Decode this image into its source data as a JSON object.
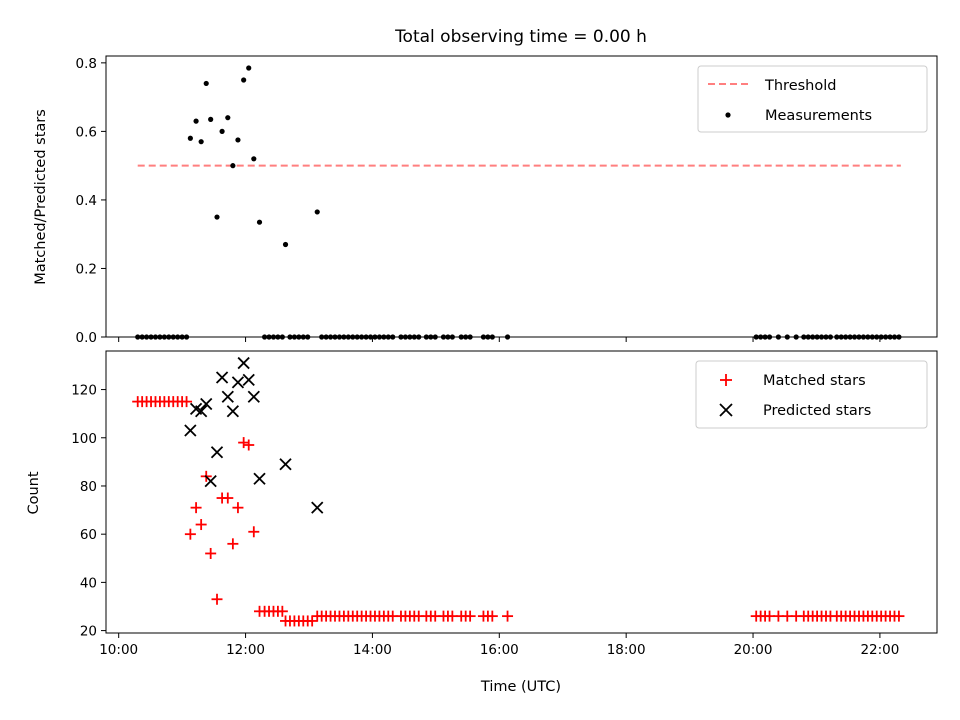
{
  "figure": {
    "title": "Total observing time = 0.00 h"
  },
  "chart_data": [
    {
      "type": "scatter",
      "title": "Total observing time = 0.00 h",
      "xlabel": "",
      "ylabel": "Matched/Predicted stars",
      "xlim": [
        9.8,
        22.9
      ],
      "ylim": [
        0,
        0.82
      ],
      "xticks": [
        10,
        12,
        14,
        16,
        18,
        20,
        22
      ],
      "xtick_labels": [
        "",
        "",
        "",
        "",
        "",
        "",
        ""
      ],
      "yticks": [
        0,
        0.2,
        0.4,
        0.6,
        0.8
      ],
      "ytick_labels": [
        "0.0",
        "0.2",
        "0.4",
        "0.6",
        "0.8"
      ],
      "legend": {
        "position": "top-right",
        "entries": [
          "Threshold",
          "Measurements"
        ]
      },
      "grid": false,
      "threshold": {
        "name": "Threshold",
        "value": 0.5,
        "x_range": [
          10.3,
          22.33
        ],
        "color": "#ff7f7f"
      },
      "series": [
        {
          "name": "Measurements",
          "color": "#000000",
          "marker": "dot",
          "points": [
            [
              11.13,
              0.58
            ],
            [
              11.22,
              0.63
            ],
            [
              11.3,
              0.57
            ],
            [
              11.38,
              0.74
            ],
            [
              11.45,
              0.635
            ],
            [
              11.55,
              0.35
            ],
            [
              11.63,
              0.6
            ],
            [
              11.72,
              0.64
            ],
            [
              11.8,
              0.5
            ],
            [
              11.88,
              0.575
            ],
            [
              11.97,
              0.75
            ],
            [
              12.05,
              0.785
            ],
            [
              12.13,
              0.52
            ],
            [
              12.22,
              0.335
            ],
            [
              12.63,
              0.27
            ],
            [
              13.13,
              0.365
            ],
            [
              10.3,
              0
            ],
            [
              10.37,
              0
            ],
            [
              10.44,
              0
            ],
            [
              10.51,
              0
            ],
            [
              10.58,
              0
            ],
            [
              10.65,
              0
            ],
            [
              10.72,
              0
            ],
            [
              10.79,
              0
            ],
            [
              10.86,
              0
            ],
            [
              10.93,
              0
            ],
            [
              11.0,
              0
            ],
            [
              11.07,
              0
            ],
            [
              12.3,
              0
            ],
            [
              12.37,
              0
            ],
            [
              12.44,
              0
            ],
            [
              12.51,
              0
            ],
            [
              12.58,
              0
            ],
            [
              12.7,
              0
            ],
            [
              12.77,
              0
            ],
            [
              12.84,
              0
            ],
            [
              12.91,
              0
            ],
            [
              12.98,
              0
            ],
            [
              13.2,
              0
            ],
            [
              13.27,
              0
            ],
            [
              13.34,
              0
            ],
            [
              13.41,
              0
            ],
            [
              13.48,
              0
            ],
            [
              13.55,
              0
            ],
            [
              13.62,
              0
            ],
            [
              13.69,
              0
            ],
            [
              13.76,
              0
            ],
            [
              13.83,
              0
            ],
            [
              13.9,
              0
            ],
            [
              13.97,
              0
            ],
            [
              14.04,
              0
            ],
            [
              14.11,
              0
            ],
            [
              14.18,
              0
            ],
            [
              14.25,
              0
            ],
            [
              14.32,
              0
            ],
            [
              14.45,
              0
            ],
            [
              14.52,
              0
            ],
            [
              14.59,
              0
            ],
            [
              14.66,
              0
            ],
            [
              14.73,
              0
            ],
            [
              14.85,
              0
            ],
            [
              14.92,
              0
            ],
            [
              14.99,
              0
            ],
            [
              15.12,
              0
            ],
            [
              15.19,
              0
            ],
            [
              15.26,
              0
            ],
            [
              15.4,
              0
            ],
            [
              15.47,
              0
            ],
            [
              15.54,
              0
            ],
            [
              15.75,
              0
            ],
            [
              15.82,
              0
            ],
            [
              15.89,
              0
            ],
            [
              16.13,
              0
            ],
            [
              20.05,
              0
            ],
            [
              20.12,
              0
            ],
            [
              20.19,
              0
            ],
            [
              20.26,
              0
            ],
            [
              20.4,
              0
            ],
            [
              20.54,
              0
            ],
            [
              20.68,
              0
            ],
            [
              20.8,
              0
            ],
            [
              20.87,
              0
            ],
            [
              20.94,
              0
            ],
            [
              21.01,
              0
            ],
            [
              21.08,
              0
            ],
            [
              21.15,
              0
            ],
            [
              21.22,
              0
            ],
            [
              21.32,
              0
            ],
            [
              21.39,
              0
            ],
            [
              21.46,
              0
            ],
            [
              21.53,
              0
            ],
            [
              21.6,
              0
            ],
            [
              21.67,
              0
            ],
            [
              21.74,
              0
            ],
            [
              21.81,
              0
            ],
            [
              21.88,
              0
            ],
            [
              21.95,
              0
            ],
            [
              22.02,
              0
            ],
            [
              22.09,
              0
            ],
            [
              22.16,
              0
            ],
            [
              22.23,
              0
            ],
            [
              22.3,
              0
            ]
          ]
        }
      ]
    },
    {
      "type": "scatter",
      "title": "",
      "xlabel": "Time (UTC)",
      "ylabel": "Count",
      "xlim": [
        9.8,
        22.9
      ],
      "ylim": [
        19,
        136
      ],
      "xticks": [
        10,
        12,
        14,
        16,
        18,
        20,
        22
      ],
      "xtick_labels": [
        "10:00",
        "12:00",
        "14:00",
        "16:00",
        "18:00",
        "20:00",
        "22:00"
      ],
      "yticks": [
        20,
        40,
        60,
        80,
        100,
        120
      ],
      "ytick_labels": [
        "20",
        "40",
        "60",
        "80",
        "100",
        "120"
      ],
      "legend": {
        "position": "top-right",
        "entries": [
          "Matched stars",
          "Predicted stars"
        ]
      },
      "grid": false,
      "series": [
        {
          "name": "Matched stars",
          "color": "#ff0000",
          "marker": "plus",
          "points": [
            [
              10.3,
              115
            ],
            [
              10.37,
              115
            ],
            [
              10.44,
              115
            ],
            [
              10.51,
              115
            ],
            [
              10.58,
              115
            ],
            [
              10.65,
              115
            ],
            [
              10.72,
              115
            ],
            [
              10.79,
              115
            ],
            [
              10.86,
              115
            ],
            [
              10.93,
              115
            ],
            [
              11.0,
              115
            ],
            [
              11.07,
              115
            ],
            [
              11.13,
              60
            ],
            [
              11.22,
              71
            ],
            [
              11.3,
              64
            ],
            [
              11.38,
              84
            ],
            [
              11.45,
              52
            ],
            [
              11.55,
              33
            ],
            [
              11.63,
              75
            ],
            [
              11.72,
              75
            ],
            [
              11.8,
              56
            ],
            [
              11.88,
              71
            ],
            [
              11.97,
              98
            ],
            [
              12.05,
              97
            ],
            [
              12.13,
              61
            ],
            [
              12.22,
              28
            ],
            [
              12.3,
              28
            ],
            [
              12.37,
              28
            ],
            [
              12.44,
              28
            ],
            [
              12.51,
              28
            ],
            [
              12.58,
              28
            ],
            [
              12.63,
              24
            ],
            [
              12.7,
              24
            ],
            [
              12.77,
              24
            ],
            [
              12.84,
              24
            ],
            [
              12.91,
              24
            ],
            [
              12.98,
              24
            ],
            [
              13.05,
              24
            ],
            [
              13.13,
              26
            ],
            [
              13.2,
              26
            ],
            [
              13.27,
              26
            ],
            [
              13.34,
              26
            ],
            [
              13.41,
              26
            ],
            [
              13.48,
              26
            ],
            [
              13.55,
              26
            ],
            [
              13.62,
              26
            ],
            [
              13.69,
              26
            ],
            [
              13.76,
              26
            ],
            [
              13.83,
              26
            ],
            [
              13.9,
              26
            ],
            [
              13.97,
              26
            ],
            [
              14.04,
              26
            ],
            [
              14.11,
              26
            ],
            [
              14.18,
              26
            ],
            [
              14.25,
              26
            ],
            [
              14.32,
              26
            ],
            [
              14.45,
              26
            ],
            [
              14.52,
              26
            ],
            [
              14.59,
              26
            ],
            [
              14.66,
              26
            ],
            [
              14.73,
              26
            ],
            [
              14.85,
              26
            ],
            [
              14.92,
              26
            ],
            [
              14.99,
              26
            ],
            [
              15.12,
              26
            ],
            [
              15.19,
              26
            ],
            [
              15.26,
              26
            ],
            [
              15.4,
              26
            ],
            [
              15.47,
              26
            ],
            [
              15.54,
              26
            ],
            [
              15.75,
              26
            ],
            [
              15.82,
              26
            ],
            [
              15.89,
              26
            ],
            [
              16.13,
              26
            ],
            [
              20.05,
              26
            ],
            [
              20.12,
              26
            ],
            [
              20.19,
              26
            ],
            [
              20.26,
              26
            ],
            [
              20.4,
              26
            ],
            [
              20.54,
              26
            ],
            [
              20.68,
              26
            ],
            [
              20.8,
              26
            ],
            [
              20.87,
              26
            ],
            [
              20.94,
              26
            ],
            [
              21.01,
              26
            ],
            [
              21.08,
              26
            ],
            [
              21.15,
              26
            ],
            [
              21.22,
              26
            ],
            [
              21.32,
              26
            ],
            [
              21.39,
              26
            ],
            [
              21.46,
              26
            ],
            [
              21.53,
              26
            ],
            [
              21.6,
              26
            ],
            [
              21.67,
              26
            ],
            [
              21.74,
              26
            ],
            [
              21.81,
              26
            ],
            [
              21.88,
              26
            ],
            [
              21.95,
              26
            ],
            [
              22.02,
              26
            ],
            [
              22.09,
              26
            ],
            [
              22.16,
              26
            ],
            [
              22.23,
              26
            ],
            [
              22.3,
              26
            ]
          ]
        },
        {
          "name": "Predicted stars",
          "color": "#000000",
          "marker": "x",
          "points": [
            [
              11.13,
              103
            ],
            [
              11.22,
              112
            ],
            [
              11.3,
              111
            ],
            [
              11.38,
              114
            ],
            [
              11.45,
              82
            ],
            [
              11.55,
              94
            ],
            [
              11.63,
              125
            ],
            [
              11.72,
              117
            ],
            [
              11.8,
              111
            ],
            [
              11.88,
              123
            ],
            [
              11.97,
              131
            ],
            [
              12.05,
              124
            ],
            [
              12.13,
              117
            ],
            [
              12.22,
              83
            ],
            [
              12.63,
              89
            ],
            [
              13.13,
              71
            ]
          ]
        }
      ]
    }
  ]
}
